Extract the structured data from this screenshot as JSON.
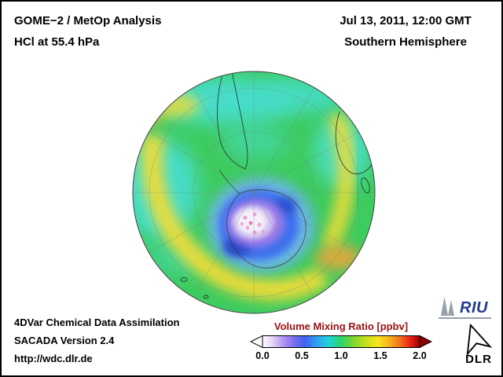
{
  "header": {
    "title_line1": "GOME−2 / MetOp Analysis",
    "title_line2": "HCl at 55.4 hPa",
    "date": "Jul 13, 2011, 12:00 GMT",
    "region": "Southern Hemisphere"
  },
  "map": {
    "type": "heatmap-globe",
    "projection": "south-polar",
    "visible_features": [
      "South America",
      "Africa",
      "Madagascar",
      "Antarctica"
    ],
    "field_colors": {
      "background_green": "#3ecb5f",
      "cyan": "#46ddc9",
      "yellow": "#f2dc38",
      "orange": "#f2a43a",
      "vortex_blue": "#3a6ef0",
      "vortex_purple": "#9d7ce8",
      "vortex_core": "#f5f1fa"
    }
  },
  "footer": {
    "line1": "4DVar Chemical Data Assimilation",
    "line2": "SACADA Version 2.4",
    "line3": "http://wdc.dlr.de"
  },
  "colorbar": {
    "title": "Volume Mixing Ratio [ppbv]",
    "title_color": "#991111",
    "min": 0.0,
    "max": 2.0,
    "ticks": [
      "0.0",
      "0.5",
      "1.0",
      "1.5",
      "2.0"
    ],
    "left_arrow_color": "#ffffff",
    "right_arrow_color": "#8b0000",
    "gradient_stops": [
      [
        0.0,
        "#ffffff"
      ],
      [
        0.06,
        "#e8d6f8"
      ],
      [
        0.13,
        "#b795f2"
      ],
      [
        0.2,
        "#7d6ef2"
      ],
      [
        0.27,
        "#3f63ee"
      ],
      [
        0.34,
        "#2f9cf2"
      ],
      [
        0.42,
        "#1fd2d8"
      ],
      [
        0.5,
        "#2ed368"
      ],
      [
        0.58,
        "#7fd62e"
      ],
      [
        0.66,
        "#c9e01e"
      ],
      [
        0.73,
        "#f6e51c"
      ],
      [
        0.8,
        "#f6b71c"
      ],
      [
        0.87,
        "#f4761c"
      ],
      [
        0.94,
        "#e92418"
      ],
      [
        1.0,
        "#9b0000"
      ]
    ]
  },
  "logos": {
    "riu": "RIU",
    "dlr": "DLR"
  }
}
